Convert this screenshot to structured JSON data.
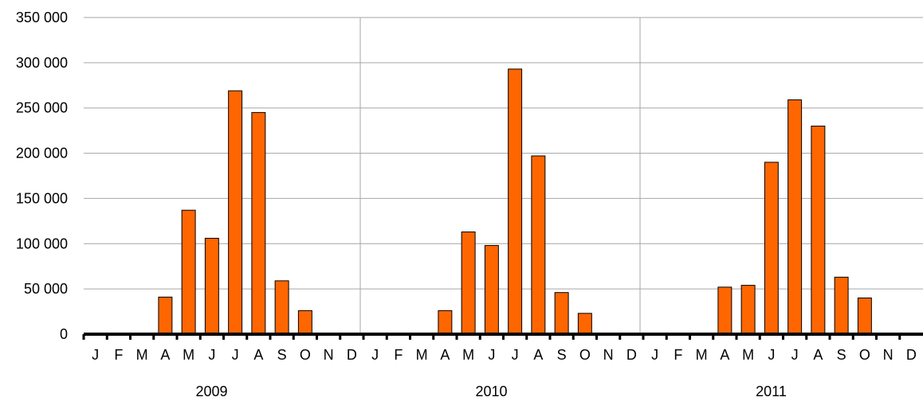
{
  "chart_data": {
    "type": "bar",
    "title": "",
    "xlabel": "",
    "ylabel": "",
    "ylim": [
      0,
      350000
    ],
    "y_ticks": [
      0,
      50000,
      100000,
      150000,
      200000,
      250000,
      300000,
      350000
    ],
    "y_tick_labels": [
      "0",
      "50 000",
      "100 000",
      "150 000",
      "200 000",
      "250 000",
      "300 000",
      "350 000"
    ],
    "grid": true,
    "bar_color": "#ff6600",
    "bar_edge_color": "#000000",
    "groups": [
      "2009",
      "2010",
      "2011"
    ],
    "categories": [
      "J",
      "F",
      "M",
      "A",
      "M",
      "J",
      "J",
      "A",
      "S",
      "O",
      "N",
      "D",
      "J",
      "F",
      "M",
      "A",
      "M",
      "J",
      "J",
      "A",
      "S",
      "O",
      "N",
      "D",
      "J",
      "F",
      "M",
      "A",
      "M",
      "J",
      "J",
      "A",
      "S",
      "O",
      "N",
      "D"
    ],
    "values": [
      0,
      0,
      0,
      41000,
      137000,
      106000,
      269000,
      245000,
      59000,
      26000,
      0,
      0,
      0,
      0,
      0,
      26000,
      113000,
      98000,
      293000,
      197000,
      46000,
      23000,
      0,
      0,
      0,
      0,
      0,
      52000,
      54000,
      190000,
      259000,
      230000,
      63000,
      40000,
      0,
      0
    ]
  }
}
